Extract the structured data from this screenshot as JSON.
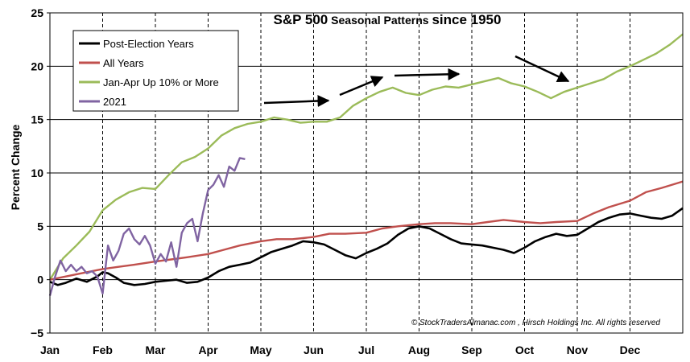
{
  "chart_data": {
    "type": "line",
    "title_parts": [
      "S&P 500",
      " Seasonal Patterns ",
      "since 1950"
    ],
    "ylabel": "Percent Change",
    "xlabel": "",
    "ylim": [
      -5,
      25
    ],
    "yticks": [
      -5,
      0,
      5,
      10,
      15,
      20,
      25
    ],
    "ytick_labels": [
      "−5",
      "0",
      "5",
      "10",
      "15",
      "20",
      "25"
    ],
    "xlim": [
      0,
      12
    ],
    "categories": [
      "Jan",
      "Feb",
      "Mar",
      "Apr",
      "May",
      "Jun",
      "Jul",
      "Aug",
      "Sep",
      "Oct",
      "Nov",
      "Dec"
    ],
    "grid": "vertical dashed at month starts",
    "legend_position": "top-left",
    "annotation": "© StockTradersAlmanac.com , Hirsch Holdings Inc. All rights reserved",
    "colors": {
      "post_election": "#000000",
      "all_years": "#c0504d",
      "jan_apr": "#9bbb59",
      "y2021": "#8064a2"
    },
    "series": [
      {
        "name": "Post-Election Years",
        "color": "#000000",
        "x": [
          0,
          0.15,
          0.3,
          0.5,
          0.7,
          0.9,
          1.0,
          1.1,
          1.25,
          1.4,
          1.6,
          1.8,
          2.0,
          2.2,
          2.4,
          2.6,
          2.8,
          3.0,
          3.2,
          3.4,
          3.6,
          3.8,
          4.0,
          4.2,
          4.4,
          4.6,
          4.8,
          5.0,
          5.2,
          5.4,
          5.6,
          5.8,
          6.0,
          6.2,
          6.4,
          6.6,
          6.8,
          7.0,
          7.2,
          7.4,
          7.6,
          7.8,
          8.0,
          8.2,
          8.4,
          8.6,
          8.8,
          9.0,
          9.2,
          9.4,
          9.6,
          9.8,
          10.0,
          10.2,
          10.4,
          10.6,
          10.8,
          11.0,
          11.2,
          11.4,
          11.6,
          11.8,
          12.0
        ],
        "values": [
          -0.2,
          -0.5,
          -0.3,
          0.1,
          -0.2,
          0.3,
          0.7,
          0.6,
          0.2,
          -0.3,
          -0.5,
          -0.4,
          -0.2,
          -0.1,
          0.0,
          -0.3,
          -0.2,
          0.2,
          0.8,
          1.2,
          1.4,
          1.6,
          2.1,
          2.6,
          2.9,
          3.2,
          3.6,
          3.5,
          3.3,
          2.8,
          2.3,
          2.0,
          2.5,
          2.9,
          3.4,
          4.2,
          4.8,
          5.0,
          4.8,
          4.3,
          3.8,
          3.4,
          3.3,
          3.2,
          3.0,
          2.8,
          2.5,
          3.0,
          3.6,
          4.0,
          4.3,
          4.1,
          4.2,
          4.8,
          5.4,
          5.8,
          6.1,
          6.2,
          6.0,
          5.8,
          5.7,
          6.0,
          6.7
        ]
      },
      {
        "name": "All Years",
        "color": "#c0504d",
        "x": [
          0,
          0.3,
          0.6,
          1.0,
          1.3,
          1.6,
          2.0,
          2.3,
          2.6,
          3.0,
          3.3,
          3.6,
          4.0,
          4.3,
          4.6,
          5.0,
          5.3,
          5.6,
          6.0,
          6.3,
          6.6,
          7.0,
          7.3,
          7.6,
          8.0,
          8.3,
          8.6,
          9.0,
          9.3,
          9.6,
          10.0,
          10.3,
          10.6,
          11.0,
          11.3,
          11.6,
          12.0
        ],
        "values": [
          0,
          0.3,
          0.6,
          1.0,
          1.2,
          1.4,
          1.7,
          1.9,
          2.1,
          2.4,
          2.8,
          3.2,
          3.6,
          3.8,
          3.8,
          4.0,
          4.3,
          4.3,
          4.4,
          4.8,
          5.0,
          5.2,
          5.3,
          5.3,
          5.2,
          5.4,
          5.6,
          5.4,
          5.3,
          5.4,
          5.5,
          6.2,
          6.8,
          7.4,
          8.2,
          8.6,
          9.2
        ]
      },
      {
        "name": "Jan-Apr Up 10% or More",
        "color": "#9bbb59",
        "x": [
          0,
          0.25,
          0.5,
          0.75,
          1.0,
          1.25,
          1.5,
          1.75,
          2.0,
          2.25,
          2.5,
          2.75,
          3.0,
          3.25,
          3.5,
          3.75,
          4.0,
          4.25,
          4.5,
          4.75,
          5.0,
          5.25,
          5.5,
          5.75,
          6.0,
          6.25,
          6.5,
          6.75,
          7.0,
          7.25,
          7.5,
          7.75,
          8.0,
          8.25,
          8.5,
          8.75,
          9.0,
          9.25,
          9.5,
          9.75,
          10.0,
          10.25,
          10.5,
          10.75,
          11.0,
          11.25,
          11.5,
          11.75,
          12.0
        ],
        "values": [
          0,
          2.0,
          3.2,
          4.5,
          6.5,
          7.5,
          8.2,
          8.6,
          8.5,
          9.8,
          11.0,
          11.5,
          12.3,
          13.5,
          14.2,
          14.6,
          14.8,
          15.2,
          15.0,
          14.7,
          14.8,
          14.8,
          15.2,
          16.3,
          17.0,
          17.6,
          18.0,
          17.5,
          17.3,
          17.8,
          18.1,
          18.0,
          18.3,
          18.6,
          18.9,
          18.4,
          18.1,
          17.6,
          17.0,
          17.6,
          18.0,
          18.4,
          18.8,
          19.5,
          20.0,
          20.6,
          21.2,
          22.0,
          23.0
        ]
      },
      {
        "name": "2021",
        "color": "#8064a2",
        "x": [
          0,
          0.1,
          0.2,
          0.3,
          0.4,
          0.5,
          0.6,
          0.7,
          0.8,
          0.9,
          1.0,
          1.1,
          1.2,
          1.3,
          1.4,
          1.5,
          1.6,
          1.7,
          1.8,
          1.9,
          2.0,
          2.1,
          2.2,
          2.3,
          2.4,
          2.5,
          2.6,
          2.7,
          2.8,
          2.9,
          3.0,
          3.1,
          3.2,
          3.3,
          3.4,
          3.5,
          3.6,
          3.7
        ],
        "values": [
          -1.5,
          0.3,
          1.8,
          0.8,
          1.4,
          0.8,
          1.2,
          0.6,
          0.8,
          0.3,
          -1.3,
          3.2,
          1.8,
          2.7,
          4.3,
          4.8,
          3.8,
          3.3,
          4.1,
          3.2,
          1.5,
          2.4,
          1.7,
          3.5,
          1.2,
          4.4,
          5.3,
          5.7,
          3.6,
          6.2,
          8.4,
          8.9,
          9.8,
          8.7,
          10.6,
          10.2,
          11.4,
          11.3
        ]
      }
    ],
    "legend": [
      "Post-Election Years",
      "All Years",
      "Jan-Apr Up 10% or More",
      "2021"
    ]
  }
}
